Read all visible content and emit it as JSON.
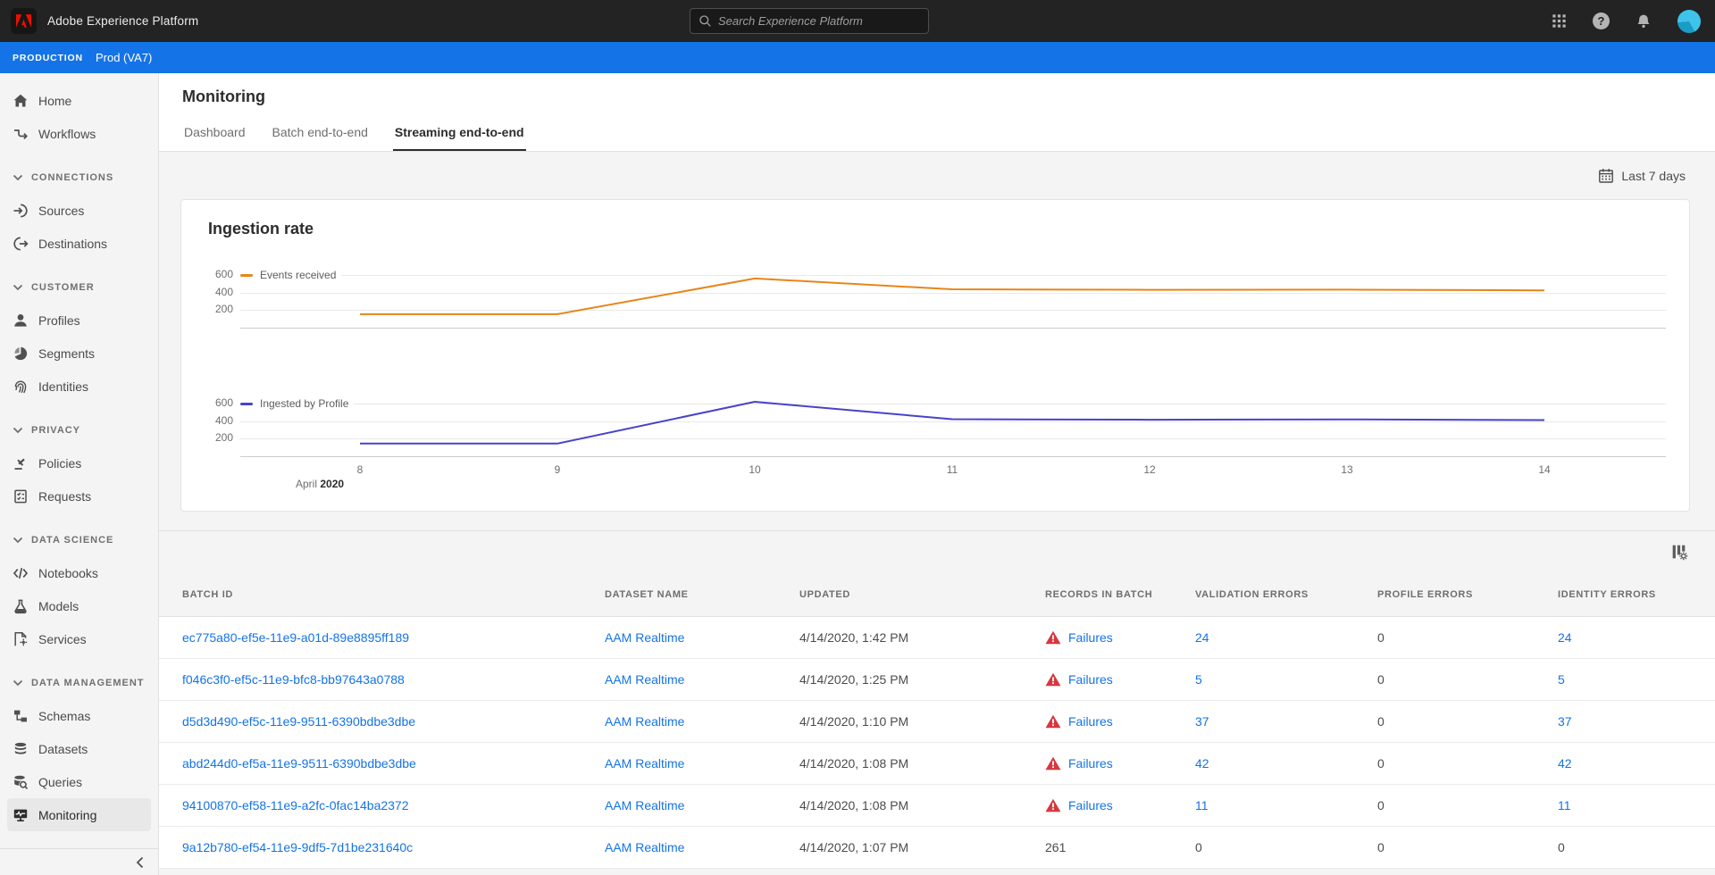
{
  "topbar": {
    "app_title": "Adobe Experience Platform",
    "search_placeholder": "Search Experience Platform",
    "icons": [
      "app-grid-icon",
      "help-icon",
      "bell-icon",
      "avatar"
    ]
  },
  "env_bar": {
    "badge": "PRODUCTION",
    "environment": "Prod (VA7)"
  },
  "sidebar": {
    "groups": [
      {
        "section": null,
        "items": [
          {
            "label": "Home",
            "icon": "home-icon"
          },
          {
            "label": "Workflows",
            "icon": "workflows-icon"
          }
        ]
      },
      {
        "section": "CONNECTIONS",
        "items": [
          {
            "label": "Sources",
            "icon": "sources-icon"
          },
          {
            "label": "Destinations",
            "icon": "destinations-icon"
          }
        ]
      },
      {
        "section": "CUSTOMER",
        "items": [
          {
            "label": "Profiles",
            "icon": "profiles-icon"
          },
          {
            "label": "Segments",
            "icon": "segments-icon"
          },
          {
            "label": "Identities",
            "icon": "identities-icon"
          }
        ]
      },
      {
        "section": "PRIVACY",
        "items": [
          {
            "label": "Policies",
            "icon": "policies-icon"
          },
          {
            "label": "Requests",
            "icon": "requests-icon"
          }
        ]
      },
      {
        "section": "DATA SCIENCE",
        "items": [
          {
            "label": "Notebooks",
            "icon": "notebooks-icon"
          },
          {
            "label": "Models",
            "icon": "models-icon"
          },
          {
            "label": "Services",
            "icon": "services-icon"
          }
        ]
      },
      {
        "section": "DATA MANAGEMENT",
        "items": [
          {
            "label": "Schemas",
            "icon": "schemas-icon"
          },
          {
            "label": "Datasets",
            "icon": "datasets-icon"
          },
          {
            "label": "Queries",
            "icon": "queries-icon"
          },
          {
            "label": "Monitoring",
            "icon": "monitoring-icon",
            "selected": true
          }
        ]
      }
    ]
  },
  "page": {
    "title": "Monitoring",
    "tabs": [
      {
        "label": "Dashboard",
        "active": false
      },
      {
        "label": "Batch end-to-end",
        "active": false
      },
      {
        "label": "Streaming end-to-end",
        "active": true
      }
    ],
    "date_range": {
      "label": "Last 7 days",
      "icon": "calendar-icon"
    },
    "table_toolbar_icon": "column-settings-icon"
  },
  "chart_data": {
    "type": "line",
    "title": "Ingestion rate",
    "x": [
      8,
      9,
      10,
      11,
      12,
      13,
      14
    ],
    "x_axis_month_label": "April",
    "x_axis_year_label": "2020",
    "yticks": [
      600,
      400,
      200
    ],
    "ylim": [
      0,
      650
    ],
    "grid": "horizontal-only",
    "legend_position": "top-left-inline",
    "series": [
      {
        "name": "Events received",
        "color": "#e68619",
        "values": [
          150,
          150,
          560,
          436,
          430,
          432,
          424
        ]
      },
      {
        "name": "Ingested by Profile",
        "color": "#4743c7",
        "values": [
          140,
          140,
          620,
          420,
          414,
          418,
          410
        ]
      }
    ]
  },
  "table": {
    "columns": [
      "BATCH ID",
      "DATASET NAME",
      "UPDATED",
      "RECORDS IN BATCH",
      "VALIDATION ERRORS",
      "PROFILE ERRORS",
      "IDENTITY ERRORS"
    ],
    "rows": [
      {
        "batch_id": "ec775a80-ef5e-11e9-a01d-89e8895ff189",
        "dataset_name": "AAM Realtime",
        "updated": "4/14/2020, 1:42 PM",
        "records_in_batch": {
          "text": "Failures",
          "warning": true,
          "link": true
        },
        "validation_errors": {
          "text": "24",
          "link": true
        },
        "profile_errors": {
          "text": "0",
          "link": false
        },
        "identity_errors": {
          "text": "24",
          "link": true
        }
      },
      {
        "batch_id": "f046c3f0-ef5c-11e9-bfc8-bb97643a0788",
        "dataset_name": "AAM Realtime",
        "updated": "4/14/2020, 1:25 PM",
        "records_in_batch": {
          "text": "Failures",
          "warning": true,
          "link": true
        },
        "validation_errors": {
          "text": "5",
          "link": true
        },
        "profile_errors": {
          "text": "0",
          "link": false
        },
        "identity_errors": {
          "text": "5",
          "link": true
        }
      },
      {
        "batch_id": "d5d3d490-ef5c-11e9-9511-6390bdbe3dbe",
        "dataset_name": "AAM Realtime",
        "updated": "4/14/2020, 1:10 PM",
        "records_in_batch": {
          "text": "Failures",
          "warning": true,
          "link": true
        },
        "validation_errors": {
          "text": "37",
          "link": true
        },
        "profile_errors": {
          "text": "0",
          "link": false
        },
        "identity_errors": {
          "text": "37",
          "link": true
        }
      },
      {
        "batch_id": "abd244d0-ef5a-11e9-9511-6390bdbe3dbe",
        "dataset_name": "AAM Realtime",
        "updated": "4/14/2020, 1:08 PM",
        "records_in_batch": {
          "text": "Failures",
          "warning": true,
          "link": true
        },
        "validation_errors": {
          "text": "42",
          "link": true
        },
        "profile_errors": {
          "text": "0",
          "link": false
        },
        "identity_errors": {
          "text": "42",
          "link": true
        }
      },
      {
        "batch_id": "94100870-ef58-11e9-a2fc-0fac14ba2372",
        "dataset_name": "AAM Realtime",
        "updated": "4/14/2020, 1:08 PM",
        "records_in_batch": {
          "text": "Failures",
          "warning": true,
          "link": true
        },
        "validation_errors": {
          "text": "11",
          "link": true
        },
        "profile_errors": {
          "text": "0",
          "link": false
        },
        "identity_errors": {
          "text": "11",
          "link": true
        }
      },
      {
        "batch_id": "9a12b780-ef54-11e9-9df5-7d1be231640c",
        "dataset_name": "AAM Realtime",
        "updated": "4/14/2020, 1:07 PM",
        "records_in_batch": {
          "text": "261",
          "warning": false,
          "link": false
        },
        "validation_errors": {
          "text": "0",
          "link": false
        },
        "profile_errors": {
          "text": "0",
          "link": false
        },
        "identity_errors": {
          "text": "0",
          "link": false
        }
      }
    ]
  },
  "colors": {
    "accent_blue": "#1473e6",
    "link_blue": "#1473e6",
    "series_orange": "#e68619",
    "series_indigo": "#4743c7",
    "warning_red": "#d7373f",
    "topbar_dark": "#232323"
  }
}
